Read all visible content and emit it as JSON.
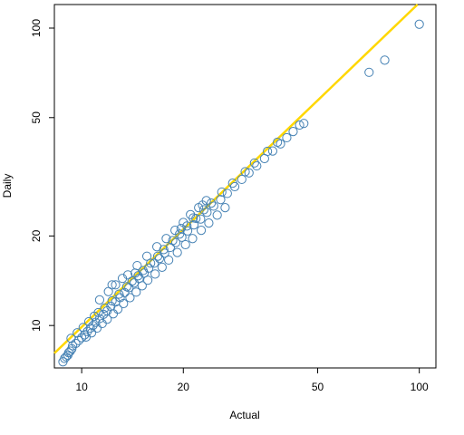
{
  "chart_data": {
    "type": "scatter",
    "xlabel": "Actual",
    "ylabel": "Daily",
    "x_scale": "log",
    "y_scale": "log",
    "xlim": [
      8.3,
      112
    ],
    "ylim": [
      7.2,
      120
    ],
    "x_ticks": [
      10,
      20,
      50,
      100
    ],
    "y_ticks": [
      10,
      20,
      50,
      100
    ],
    "grid": false,
    "legend": "none",
    "point_color": "#4682B4",
    "line_color": "#FFD700",
    "fit_line": {
      "slope": 1.09,
      "intercept": -0.095
    },
    "points": [
      [
        8.8,
        7.55
      ],
      [
        8.9,
        7.75
      ],
      [
        9.0,
        7.85
      ],
      [
        9.1,
        7.95
      ],
      [
        9.15,
        8.1
      ],
      [
        9.25,
        8.2
      ],
      [
        9.35,
        8.35
      ],
      [
        9.4,
        8.55
      ],
      [
        9.6,
        8.7
      ],
      [
        9.8,
        8.9
      ],
      [
        10.0,
        9.1
      ],
      [
        10.2,
        9.3
      ],
      [
        10.4,
        9.55
      ],
      [
        10.6,
        9.8
      ],
      [
        10.8,
        10.0
      ],
      [
        11.0,
        10.25
      ],
      [
        11.3,
        10.55
      ],
      [
        11.6,
        10.9
      ],
      [
        11.9,
        11.2
      ],
      [
        12.2,
        11.6
      ],
      [
        12.6,
        12.0
      ],
      [
        13.0,
        12.4
      ],
      [
        13.4,
        12.9
      ],
      [
        13.8,
        13.4
      ],
      [
        14.3,
        13.9
      ],
      [
        14.8,
        14.4
      ],
      [
        15.3,
        15.0
      ],
      [
        15.8,
        15.6
      ],
      [
        16.4,
        16.2
      ],
      [
        17.0,
        16.8
      ],
      [
        17.6,
        17.5
      ],
      [
        18.3,
        18.3
      ],
      [
        19.0,
        19.0
      ],
      [
        19.8,
        19.8
      ],
      [
        20.6,
        20.8
      ],
      [
        21.5,
        21.8
      ],
      [
        22.5,
        22.8
      ],
      [
        23.5,
        24.0
      ],
      [
        24.6,
        25.2
      ],
      [
        25.8,
        26.5
      ],
      [
        27.0,
        27.8
      ],
      [
        28.4,
        29.3
      ],
      [
        29.8,
        31.0
      ],
      [
        31.3,
        32.6
      ],
      [
        33.0,
        34.4
      ],
      [
        34.8,
        36.4
      ],
      [
        36.8,
        38.6
      ],
      [
        38.8,
        40.8
      ],
      [
        40.5,
        42.8
      ],
      [
        42.3,
        44.9
      ],
      [
        44.2,
        47.2
      ],
      [
        45.5,
        47.8
      ],
      [
        9.3,
        9.05
      ],
      [
        9.7,
        9.45
      ],
      [
        10.1,
        9.85
      ],
      [
        10.5,
        10.3
      ],
      [
        10.9,
        10.75
      ],
      [
        11.2,
        11.05
      ],
      [
        11.7,
        11.45
      ],
      [
        12.3,
        12.1
      ],
      [
        12.9,
        12.75
      ],
      [
        13.6,
        13.5
      ],
      [
        14.1,
        14.1
      ],
      [
        14.7,
        14.7
      ],
      [
        15.2,
        15.3
      ],
      [
        16.0,
        16.2
      ],
      [
        16.8,
        17.1
      ],
      [
        17.5,
        18.0
      ],
      [
        18.6,
        19.3
      ],
      [
        19.5,
        20.3
      ],
      [
        20.5,
        21.6
      ],
      [
        21.8,
        22.9
      ],
      [
        23.0,
        24.5
      ],
      [
        24.2,
        25.8
      ],
      [
        26.0,
        28.1
      ],
      [
        28.0,
        30.1
      ],
      [
        30.5,
        32.9
      ],
      [
        32.5,
        35.2
      ],
      [
        35.5,
        38.5
      ],
      [
        38.0,
        41.3
      ],
      [
        10.3,
        9.15
      ],
      [
        10.7,
        9.45
      ],
      [
        11.1,
        9.8
      ],
      [
        11.5,
        10.15
      ],
      [
        11.9,
        10.5
      ],
      [
        12.4,
        10.95
      ],
      [
        12.8,
        11.35
      ],
      [
        13.3,
        11.85
      ],
      [
        13.9,
        12.4
      ],
      [
        14.5,
        12.95
      ],
      [
        15.1,
        13.6
      ],
      [
        15.7,
        14.2
      ],
      [
        16.5,
        14.9
      ],
      [
        17.3,
        15.7
      ],
      [
        18.1,
        16.6
      ],
      [
        19.2,
        17.6
      ],
      [
        20.3,
        18.7
      ],
      [
        21.3,
        19.6
      ],
      [
        22.6,
        20.9
      ],
      [
        23.8,
        22.1
      ],
      [
        25.2,
        23.5
      ],
      [
        26.6,
        24.9
      ],
      [
        11.3,
        12.2
      ],
      [
        12.0,
        13.0
      ],
      [
        12.6,
        13.7
      ],
      [
        13.7,
        14.8
      ],
      [
        14.6,
        15.9
      ],
      [
        15.6,
        17.1
      ],
      [
        16.7,
        18.4
      ],
      [
        17.8,
        19.6
      ],
      [
        18.9,
        20.9
      ],
      [
        20.0,
        22.2
      ],
      [
        21.0,
        23.6
      ],
      [
        22.2,
        24.9
      ],
      [
        23.4,
        26.3
      ],
      [
        12.3,
        13.7
      ],
      [
        14.4,
        15.0
      ],
      [
        19.7,
        21.2
      ],
      [
        21.4,
        23.0
      ],
      [
        22.8,
        25.4
      ],
      [
        13.2,
        14.4
      ],
      [
        71.0,
        71.0
      ],
      [
        79.0,
        78.0
      ],
      [
        100.0,
        103.0
      ]
    ]
  }
}
